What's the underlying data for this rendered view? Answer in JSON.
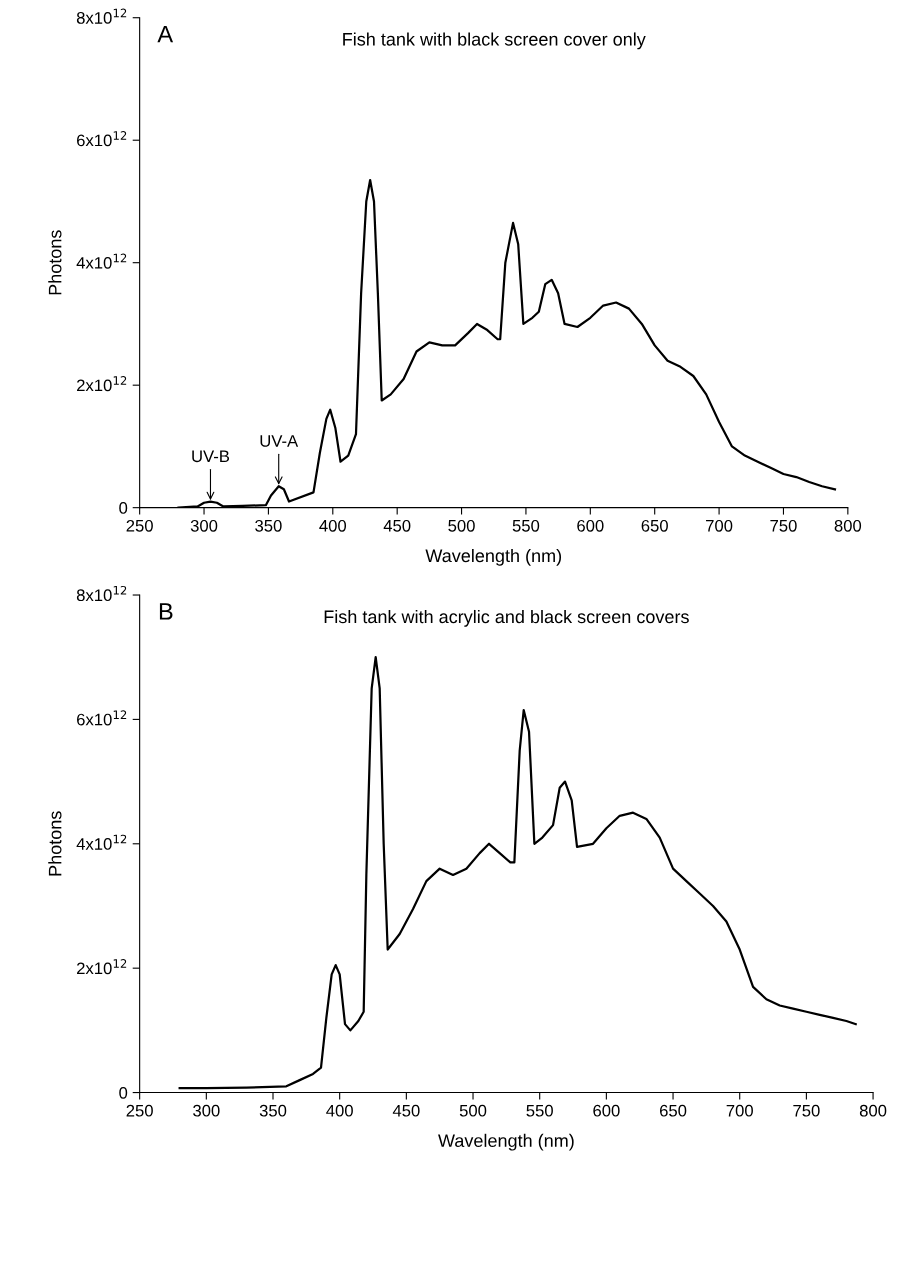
{
  "chart_data": [
    {
      "type": "line",
      "title": "Fish tank with black screen cover only",
      "xlabel": "Wavelength (nm)",
      "ylabel": "Photons",
      "annotations": [
        "A",
        {
          "text": "UV-B",
          "x": 305,
          "y": 100000000000.0
        },
        {
          "text": "UV-A",
          "x": 358,
          "y": 350000000000.0
        }
      ],
      "xlim": [
        250,
        800
      ],
      "xticks": [
        250,
        300,
        350,
        400,
        450,
        500,
        550,
        600,
        650,
        700,
        750,
        800
      ],
      "ylim": [
        0,
        8000000000000.0
      ],
      "yticks": [
        {
          "value": 0,
          "label": "0"
        },
        {
          "value": 2000000000000.0,
          "label": "2x10$^{12}$"
        },
        {
          "value": 4000000000000.0,
          "label": "4x10$^{12}$"
        },
        {
          "value": 6000000000000.0,
          "label": "6x10$^{12}$"
        },
        {
          "value": 8000000000000.0,
          "label": "8x10$^{12}$"
        }
      ],
      "grid": false,
      "legend": false,
      "series": [
        {
          "color": "#000000",
          "x": [
            280,
            295,
            300,
            305,
            310,
            315,
            330,
            348,
            352,
            358,
            362,
            366,
            385,
            390,
            395,
            398,
            402,
            406,
            412,
            418,
            422,
            426,
            429,
            432,
            435,
            438,
            445,
            455,
            465,
            475,
            485,
            495,
            505,
            512,
            520,
            528,
            530,
            534,
            540,
            544,
            548,
            555,
            560,
            565,
            570,
            575,
            580,
            590,
            600,
            610,
            620,
            630,
            640,
            650,
            660,
            670,
            680,
            690,
            700,
            710,
            720,
            730,
            740,
            750,
            760,
            770,
            780,
            790
          ],
          "values": [
            0,
            20000000000.0,
            80000000000.0,
            100000000000.0,
            80000000000.0,
            20000000000.0,
            30000000000.0,
            40000000000.0,
            200000000000.0,
            350000000000.0,
            300000000000.0,
            100000000000.0,
            250000000000.0,
            900000000000.0,
            1450000000000.0,
            1600000000000.0,
            1300000000000.0,
            750000000000.0,
            850000000000.0,
            1200000000000.0,
            3500000000000.0,
            5000000000000.0,
            5350000000000.0,
            5000000000000.0,
            3500000000000.0,
            1750000000000.0,
            1850000000000.0,
            2100000000000.0,
            2550000000000.0,
            2700000000000.0,
            2650000000000.0,
            2650000000000.0,
            2850000000000.0,
            3000000000000.0,
            2900000000000.0,
            2750000000000.0,
            2750000000000.0,
            4000000000000.0,
            4650000000000.0,
            4300000000000.0,
            3000000000000.0,
            3100000000000.0,
            3200000000000.0,
            3650000000000.0,
            3720000000000.0,
            3500000000000.0,
            3000000000000.0,
            2950000000000.0,
            3100000000000.0,
            3300000000000.0,
            3350000000000.0,
            3250000000000.0,
            3000000000000.0,
            2650000000000.0,
            2400000000000.0,
            2300000000000.0,
            2150000000000.0,
            1850000000000.0,
            1400000000000.0,
            1000000000000.0,
            850000000000.0,
            750000000000.0,
            650000000000.0,
            550000000000.0,
            500000000000.0,
            420000000000.0,
            350000000000.0,
            300000000000.0
          ]
        }
      ]
    },
    {
      "type": "line",
      "title": "Fish tank with acrylic and black screen covers",
      "xlabel": "Wavelength (nm)",
      "ylabel": "Photons",
      "annotations": [
        "B"
      ],
      "xlim": [
        250,
        800
      ],
      "xticks": [
        250,
        300,
        350,
        400,
        450,
        500,
        550,
        600,
        650,
        700,
        750,
        800
      ],
      "ylim": [
        0,
        8000000000000.0
      ],
      "yticks": [
        {
          "value": 0,
          "label": "0"
        },
        {
          "value": 2000000000000.0,
          "label": "2x10$^{12}$"
        },
        {
          "value": 4000000000000.0,
          "label": "4x10$^{12}$"
        },
        {
          "value": 6000000000000.0,
          "label": "6x10$^{12}$"
        },
        {
          "value": 8000000000000.0,
          "label": "8x10$^{12}$"
        }
      ],
      "grid": false,
      "legend": false,
      "series": [
        {
          "color": "#000000",
          "x": [
            280,
            300,
            330,
            360,
            370,
            380,
            386,
            390,
            394,
            397,
            400,
            404,
            408,
            414,
            418,
            420,
            424,
            427,
            430,
            433,
            436,
            445,
            455,
            465,
            475,
            485,
            495,
            505,
            512,
            520,
            528,
            531,
            535,
            538,
            542,
            546,
            552,
            560,
            565,
            569,
            574,
            578,
            590,
            600,
            610,
            620,
            630,
            640,
            650,
            660,
            670,
            680,
            690,
            700,
            710,
            720,
            730,
            740,
            750,
            760,
            770,
            780,
            787
          ],
          "values": [
            70000000000.0,
            70000000000.0,
            80000000000.0,
            100000000000.0,
            200000000000.0,
            300000000000.0,
            400000000000.0,
            1200000000000.0,
            1900000000000.0,
            2050000000000.0,
            1900000000000.0,
            1100000000000.0,
            1000000000000.0,
            1150000000000.0,
            1300000000000.0,
            3500000000000.0,
            6500000000000.0,
            7000000000000.0,
            6500000000000.0,
            4000000000000.0,
            2300000000000.0,
            2550000000000.0,
            2950000000000.0,
            3400000000000.0,
            3600000000000.0,
            3500000000000.0,
            3600000000000.0,
            3850000000000.0,
            4000000000000.0,
            3850000000000.0,
            3700000000000.0,
            3700000000000.0,
            5500000000000.0,
            6150000000000.0,
            5800000000000.0,
            4000000000000.0,
            4100000000000.0,
            4300000000000.0,
            4900000000000.0,
            5000000000000.0,
            4700000000000.0,
            3950000000000.0,
            4000000000000.0,
            4250000000000.0,
            4450000000000.0,
            4500000000000.0,
            4400000000000.0,
            4100000000000.0,
            3600000000000.0,
            3400000000000.0,
            3200000000000.0,
            3000000000000.0,
            2750000000000.0,
            2300000000000.0,
            1700000000000.0,
            1500000000000.0,
            1400000000000.0,
            1350000000000.0,
            1300000000000.0,
            1250000000000.0,
            1200000000000.0,
            1150000000000.0,
            1100000000000.0
          ]
        }
      ]
    }
  ]
}
